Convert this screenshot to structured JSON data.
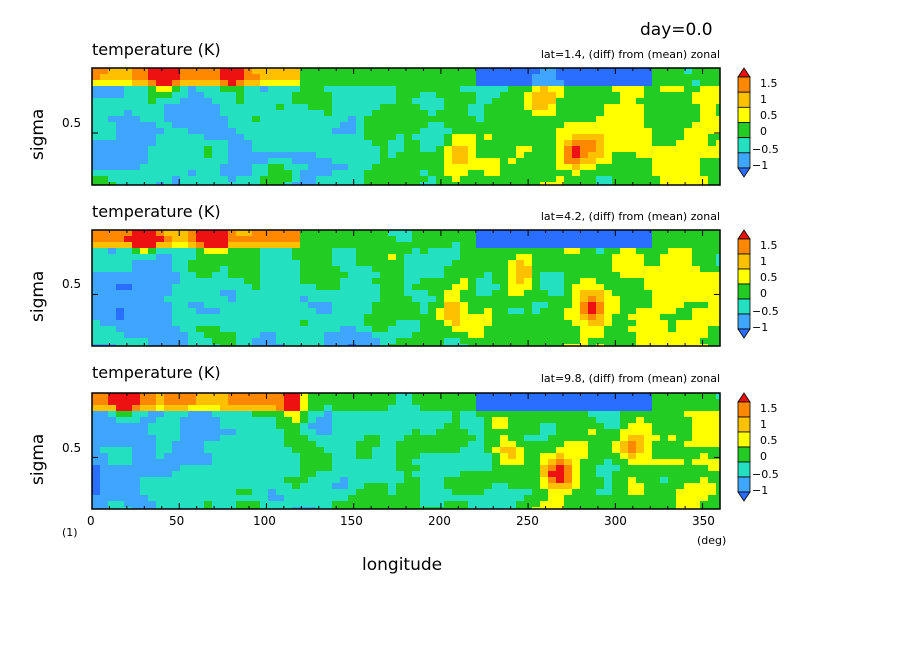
{
  "header": {
    "day_label": "day=0.0"
  },
  "axis": {
    "x_label": "longitude",
    "x_unit": "(deg)",
    "y_unit": "(1)",
    "y_label": "sigma",
    "x_ticks": [
      "0",
      "50",
      "100",
      "150",
      "200",
      "250",
      "300",
      "350"
    ],
    "y_tick": "0.5"
  },
  "colorbar": {
    "labels": [
      "1.5",
      "1",
      "0.5",
      "0",
      "−0.5",
      "−1"
    ],
    "colors": [
      "#2a6eff",
      "#3fa6ff",
      "#22e0c0",
      "#22cc22",
      "#ffff00",
      "#ffc000",
      "#ff8800",
      "#ee1111"
    ]
  },
  "chart_data": [
    {
      "type": "heatmap",
      "title": "temperature (K)",
      "subtitle": "lat=1.4, (diff) from (mean) zonal",
      "xlabel": "",
      "ylabel": "sigma",
      "xlim": [
        0,
        360
      ],
      "ylim": [
        0.1,
        1.0
      ],
      "y_reversed": false,
      "color_levels": [
        -1,
        -0.5,
        0,
        0.5,
        1,
        1.5
      ],
      "hotspots": [
        {
          "lon": 274,
          "sigma": 0.35,
          "value": 2.0
        },
        {
          "lon": 209,
          "sigma": 0.36,
          "value": 1.5
        },
        {
          "lon": 287,
          "sigma": 0.4,
          "value": 0.9
        },
        {
          "lon": 258,
          "sigma": 0.78,
          "value": 1.0
        },
        {
          "lon": 40,
          "sigma": 0.92,
          "value": 1.6
        },
        {
          "lon": 80,
          "sigma": 0.92,
          "value": 1.2
        }
      ]
    },
    {
      "type": "heatmap",
      "title": "temperature (K)",
      "subtitle": "lat=4.2, (diff) from (mean) zonal",
      "xlabel": "",
      "ylabel": "sigma",
      "xlim": [
        0,
        360
      ],
      "ylim": [
        0.1,
        1.0
      ],
      "y_reversed": false,
      "color_levels": [
        -1,
        -0.5,
        0,
        0.5,
        1,
        1.5
      ],
      "hotspots": [
        {
          "lon": 284,
          "sigma": 0.4,
          "value": 1.6
        },
        {
          "lon": 245,
          "sigma": 0.68,
          "value": 1.4
        },
        {
          "lon": 205,
          "sigma": 0.4,
          "value": 1.2
        },
        {
          "lon": 30,
          "sigma": 0.92,
          "value": 1.7
        },
        {
          "lon": 70,
          "sigma": 0.92,
          "value": 1.5
        }
      ]
    },
    {
      "type": "heatmap",
      "title": "temperature (K)",
      "subtitle": "lat=9.8, (diff) from (mean) zonal",
      "xlabel": "longitude",
      "ylabel": "sigma",
      "xlim": [
        0,
        360
      ],
      "ylim": [
        0.1,
        1.0
      ],
      "y_reversed": false,
      "color_levels": [
        -1,
        -0.5,
        0,
        0.5,
        1,
        1.5
      ],
      "hotspots": [
        {
          "lon": 266,
          "sigma": 0.4,
          "value": 2.0
        },
        {
          "lon": 237,
          "sigma": 0.55,
          "value": 1.0
        },
        {
          "lon": 308,
          "sigma": 0.6,
          "value": 1.2
        },
        {
          "lon": 20,
          "sigma": 0.93,
          "value": 1.6
        },
        {
          "lon": 115,
          "sigma": 0.9,
          "value": 1.3
        }
      ]
    }
  ]
}
